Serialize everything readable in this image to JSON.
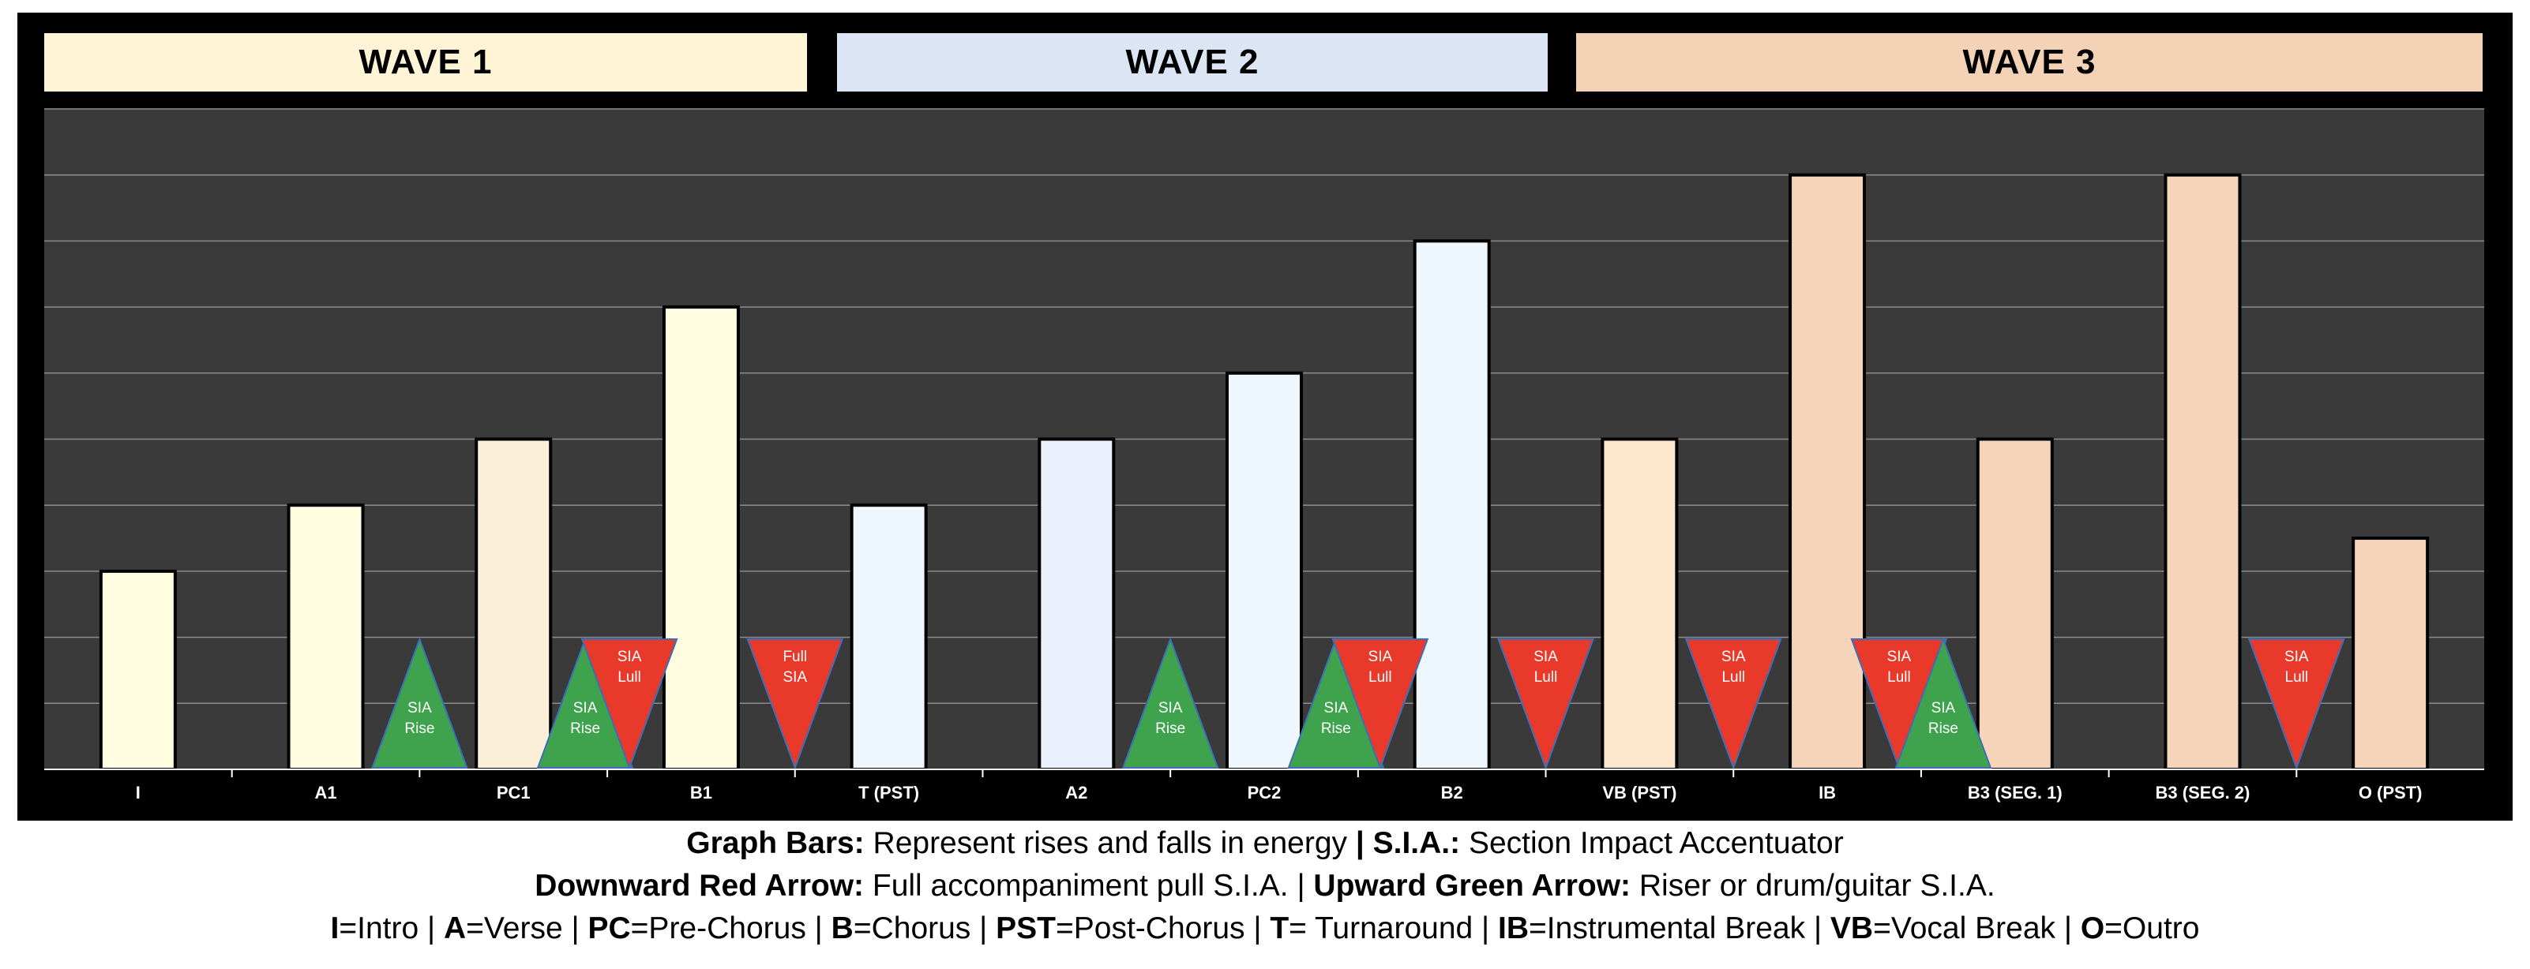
{
  "waves": [
    {
      "label": "WAVE 1",
      "color": "#FFF5D6"
    },
    {
      "label": "WAVE 2",
      "color": "#DCE5F4"
    },
    {
      "label": "WAVE 3",
      "color": "#F4D2B6"
    }
  ],
  "chart_data": {
    "type": "bar",
    "title": "",
    "xlabel": "",
    "ylabel": "",
    "ylim": [
      0,
      10
    ],
    "grid": true,
    "background": "#3A3A3A",
    "categories": [
      "I",
      "A1",
      "PC1",
      "B1",
      "T (PST)",
      "A2",
      "PC2",
      "B2",
      "VB (PST)",
      "IB",
      "B3 (SEG. 1)",
      "B3 (SEG. 2)",
      "O (PST)"
    ],
    "values": [
      3,
      4,
      5,
      7,
      4,
      5,
      6,
      8,
      5,
      9,
      5,
      9,
      3.5
    ],
    "bar_colors": [
      "#FFFCE0",
      "#FFFCE0",
      "#FCEFD8",
      "#FFFCE0",
      "#EEF7FD",
      "#EAF0FC",
      "#EEF7FD",
      "#EEF7FD",
      "#FCE6CC",
      "#F6D4BA",
      "#F6D4BA",
      "#F6D4BA",
      "#F6D4BA"
    ],
    "markers": [
      {
        "type": "rise",
        "text": [
          "SIA",
          "Rise"
        ],
        "after": "A1"
      },
      {
        "type": "rise",
        "text": [
          "SIA",
          "Rise"
        ],
        "after": "PC1"
      },
      {
        "type": "lull",
        "text": [
          "SIA",
          "Lull"
        ],
        "after": "PC1"
      },
      {
        "type": "lull",
        "text": [
          "Full",
          "SIA"
        ],
        "after": "B1"
      },
      {
        "type": "rise",
        "text": [
          "SIA",
          "Rise"
        ],
        "after": "A2"
      },
      {
        "type": "rise",
        "text": [
          "SIA",
          "Rise"
        ],
        "after": "PC2"
      },
      {
        "type": "lull",
        "text": [
          "SIA",
          "Lull"
        ],
        "after": "PC2"
      },
      {
        "type": "lull",
        "text": [
          "SIA",
          "Lull"
        ],
        "after": "B2"
      },
      {
        "type": "lull",
        "text": [
          "SIA",
          "Lull"
        ],
        "after": "VB (PST)"
      },
      {
        "type": "lull",
        "text": [
          "SIA",
          "Lull"
        ],
        "after": "IB"
      },
      {
        "type": "rise",
        "text": [
          "SIA",
          "Rise"
        ],
        "after": "IB"
      },
      {
        "type": "lull",
        "text": [
          "SIA",
          "Lull"
        ],
        "after": "B3 (SEG. 2)"
      }
    ],
    "marker_colors": {
      "rise": "#3FA34D",
      "lull": "#E8392B"
    }
  },
  "caption": {
    "line1": [
      {
        "b": "Graph Bars:"
      },
      {
        "t": " Represent rises and falls in energy "
      },
      {
        "b": "| S.I.A.:"
      },
      {
        "t": " Section Impact Accentuator"
      }
    ],
    "line2": [
      {
        "b": "Downward Red Arrow:"
      },
      {
        "t": " Full accompaniment pull S.I.A. | "
      },
      {
        "b": "Upward Green Arrow:"
      },
      {
        "t": " Riser or drum/guitar S.I.A."
      }
    ],
    "line3": [
      {
        "b": "I"
      },
      {
        "t": "=Intro | "
      },
      {
        "b": "A"
      },
      {
        "t": "=Verse | "
      },
      {
        "b": "PC"
      },
      {
        "t": "=Pre-Chorus | "
      },
      {
        "b": "B"
      },
      {
        "t": "=Chorus | "
      },
      {
        "b": "PST"
      },
      {
        "t": "=Post-Chorus | "
      },
      {
        "b": "T"
      },
      {
        "t": "= Turnaround | "
      },
      {
        "b": "IB"
      },
      {
        "t": "=Instrumental Break | "
      },
      {
        "b": "VB"
      },
      {
        "t": "=Vocal Break | "
      },
      {
        "b": "O"
      },
      {
        "t": "=Outro"
      }
    ]
  }
}
